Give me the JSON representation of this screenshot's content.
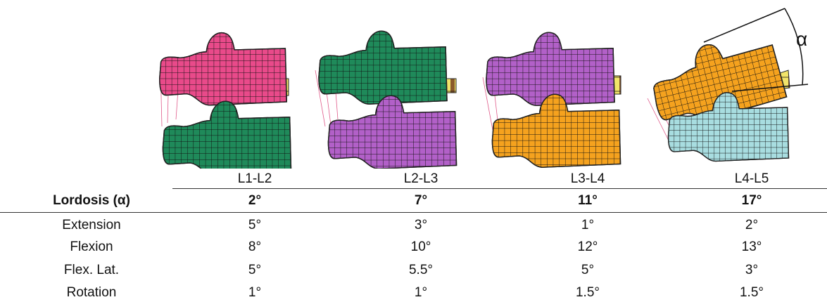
{
  "figure": {
    "alpha_label": "α"
  },
  "table": {
    "columns": [
      "L1-L2",
      "L2-L3",
      "L3-L4",
      "L4-L5"
    ],
    "rows": [
      [
        "Lordosis (α)",
        "2°",
        "7°",
        "11°",
        "17°"
      ],
      [
        "Extension",
        "5°",
        "3°",
        "1°",
        "2°"
      ],
      [
        "Flexion",
        "8°",
        "10°",
        "12°",
        "13°"
      ],
      [
        "Flex. Lat.",
        "5°",
        "5.5°",
        "5°",
        "3°"
      ],
      [
        "Rotation",
        "1°",
        "1°",
        "1.5°",
        "1.5°"
      ]
    ]
  }
}
